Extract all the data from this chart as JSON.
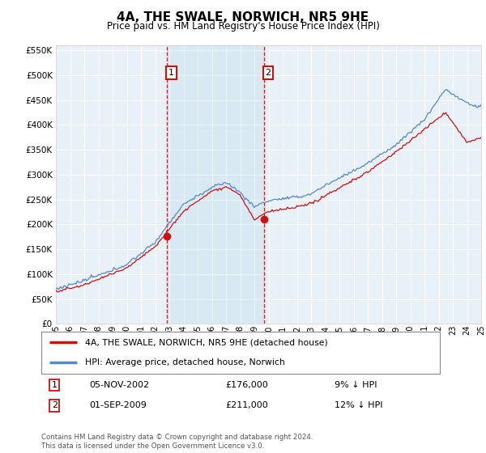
{
  "title": "4A, THE SWALE, NORWICH, NR5 9HE",
  "subtitle": "Price paid vs. HM Land Registry's House Price Index (HPI)",
  "ylim": [
    0,
    560000
  ],
  "yticks": [
    0,
    50000,
    100000,
    150000,
    200000,
    250000,
    300000,
    350000,
    400000,
    450000,
    500000,
    550000
  ],
  "background_color": "#ffffff",
  "plot_bg_color": "#e8f0f8",
  "grid_color": "#ffffff",
  "hpi_color": "#5588cc",
  "price_color": "#cc1111",
  "vline_color": "#cc1111",
  "sale1_date_num": 2002.84,
  "sale1_price": 176000,
  "sale1_text": "05-NOV-2002",
  "sale1_amount": "£176,000",
  "sale1_hpi": "9% ↓ HPI",
  "sale2_date_num": 2009.67,
  "sale2_price": 211000,
  "sale2_text": "01-SEP-2009",
  "sale2_amount": "£211,000",
  "sale2_hpi": "12% ↓ HPI",
  "legend_line1": "4A, THE SWALE, NORWICH, NR5 9HE (detached house)",
  "legend_line2": "HPI: Average price, detached house, Norwich",
  "footnote": "Contains HM Land Registry data © Crown copyright and database right 2024.\nThis data is licensed under the Open Government Licence v3.0.",
  "xmin": 1995,
  "xmax": 2025
}
